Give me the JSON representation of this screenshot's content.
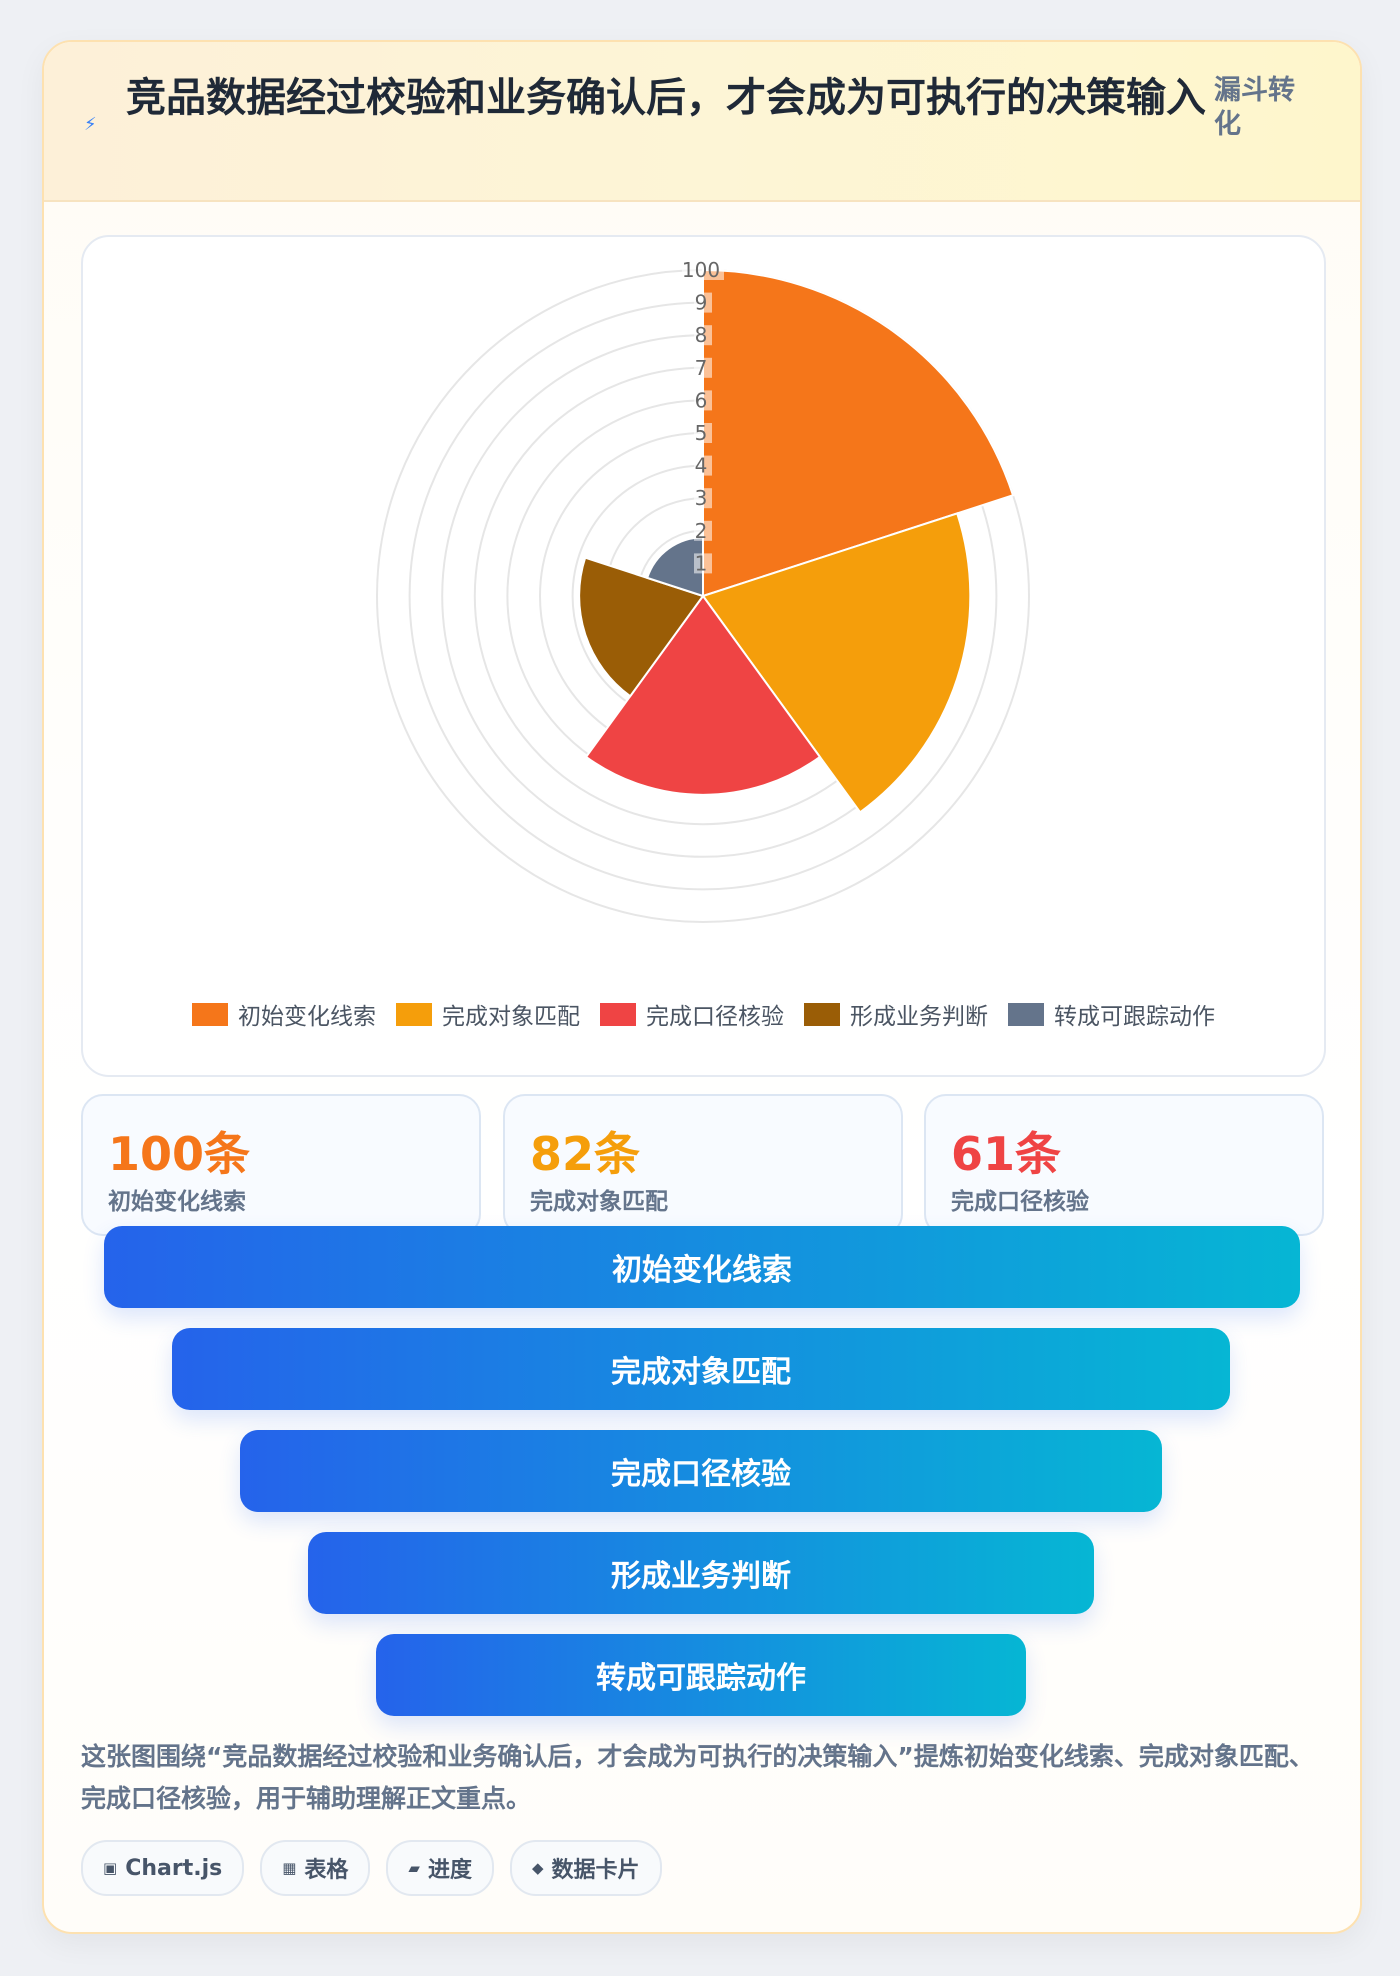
{
  "header": {
    "icon": "lightning-icon",
    "title": "竞品数据经过校验和业务确认后，才会成为可执行的决策输入",
    "tag": "漏斗转化"
  },
  "chart_data": {
    "type": "polarArea",
    "categories": [
      "初始变化线索",
      "完成对象匹配",
      "完成口径核验",
      "形成业务判断",
      "转成可跟踪动作"
    ],
    "values": [
      100,
      82,
      61,
      38,
      18
    ],
    "colors": [
      "#f5761a",
      "#f59e0b",
      "#ef4444",
      "#9a5d06",
      "#64748b"
    ],
    "r_range": [
      0,
      100
    ],
    "r_ticks": [
      "1",
      "2",
      "3",
      "4",
      "5",
      "6",
      "7",
      "8",
      "9",
      "100"
    ],
    "grid": true,
    "legend_position": "bottom"
  },
  "stats": [
    {
      "value": "100条",
      "label": "初始变化线索",
      "color": "#f5761a"
    },
    {
      "value": "82条",
      "label": "完成对象匹配",
      "color": "#f59e0b"
    },
    {
      "value": "61条",
      "label": "完成口径核验",
      "color": "#ef4444"
    }
  ],
  "funnel": [
    "初始变化线索",
    "完成对象匹配",
    "完成口径核验",
    "形成业务判断",
    "转成可跟踪动作"
  ],
  "description": "这张图围绕“竞品数据经过校验和业务确认后，才会成为可执行的决策输入”提炼初始变化线索、完成对象匹配、完成口径核验，用于辅助理解正文重点。",
  "chips": [
    {
      "icon": "chart-icon",
      "glyph": "▣",
      "label": "Chart.js"
    },
    {
      "icon": "table-icon",
      "glyph": "▦",
      "label": "表格"
    },
    {
      "icon": "progress-icon",
      "glyph": "▰",
      "label": "进度"
    },
    {
      "icon": "data-card-icon",
      "glyph": "◆",
      "label": "数据卡片"
    }
  ]
}
